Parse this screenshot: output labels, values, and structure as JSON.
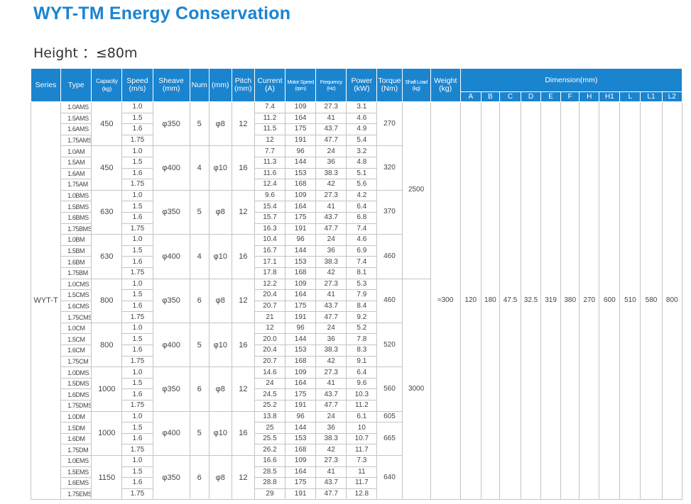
{
  "title": "WYT-TM Energy Conservation",
  "height_label": "Height ：≤80m",
  "headers": {
    "series": "Series",
    "type": "Type",
    "capacity": "Capacity (kg)",
    "speed": "Speed (m/s)",
    "sheave": "Sheave (mm)",
    "num": "Num",
    "mm": "(mm)",
    "pitch": "Pitch (mm)",
    "current": "Current (A)",
    "motor_speed": "Motor Speed (rpm)",
    "frequency": "Frequency (Hz)",
    "power": "Power (kW)",
    "torque": "Torque (Nm)",
    "shaft_load": "Shaft Load (kg)",
    "weight": "Weight (kg)",
    "dimension": "Dimension(mm)",
    "dim_cols": [
      "A",
      "B",
      "C",
      "D",
      "E",
      "F",
      "H",
      "H1",
      "L",
      "L1",
      "L2"
    ]
  },
  "series_name": "WYT-T",
  "shaft_loads": [
    "2500",
    "3000"
  ],
  "weight": "≈300",
  "dimensions": [
    "120",
    "180",
    "47.5",
    "32.5",
    "319",
    "380",
    "270",
    "600",
    "510",
    "580",
    "800"
  ],
  "groups": [
    {
      "capacity": "450",
      "sheave": "φ350",
      "num": "5",
      "rope": "φ8",
      "pitch": "12",
      "torque": [
        "270"
      ],
      "rows": [
        {
          "type": "1.0AMS",
          "speed": "1.0",
          "current": "7.4",
          "motor_speed": "109",
          "frequency": "27.3",
          "power": "3.1"
        },
        {
          "type": "1.5AMS",
          "speed": "1.5",
          "current": "11.2",
          "motor_speed": "164",
          "frequency": "41",
          "power": "4.6"
        },
        {
          "type": "1.6AMS",
          "speed": "1.6",
          "current": "11.5",
          "motor_speed": "175",
          "frequency": "43.7",
          "power": "4.9"
        },
        {
          "type": "1.75AMS",
          "speed": "1.75",
          "current": "12",
          "motor_speed": "191",
          "frequency": "47.7",
          "power": "5.4"
        }
      ]
    },
    {
      "capacity": "450",
      "sheave": "φ400",
      "num": "4",
      "rope": "φ10",
      "pitch": "16",
      "torque": [
        "320"
      ],
      "rows": [
        {
          "type": "1.0AM",
          "speed": "1.0",
          "current": "7.7",
          "motor_speed": "96",
          "frequency": "24",
          "power": "3.2"
        },
        {
          "type": "1.5AM",
          "speed": "1.5",
          "current": "11.3",
          "motor_speed": "144",
          "frequency": "36",
          "power": "4.8"
        },
        {
          "type": "1.6AM",
          "speed": "1.6",
          "current": "11.6",
          "motor_speed": "153",
          "frequency": "38.3",
          "power": "5.1"
        },
        {
          "type": "1.75AM",
          "speed": "1.75",
          "current": "12.4",
          "motor_speed": "168",
          "frequency": "42",
          "power": "5.6"
        }
      ]
    },
    {
      "capacity": "630",
      "sheave": "φ350",
      "num": "5",
      "rope": "φ8",
      "pitch": "12",
      "torque": [
        "370"
      ],
      "rows": [
        {
          "type": "1.0BMS",
          "speed": "1.0",
          "current": "9.6",
          "motor_speed": "109",
          "frequency": "27.3",
          "power": "4.2"
        },
        {
          "type": "1.5BMS",
          "speed": "1.5",
          "current": "15.4",
          "motor_speed": "164",
          "frequency": "41",
          "power": "6.4"
        },
        {
          "type": "1.6BMS",
          "speed": "1.6",
          "current": "15.7",
          "motor_speed": "175",
          "frequency": "43.7",
          "power": "6.8"
        },
        {
          "type": "1.75BMS",
          "speed": "1.75",
          "current": "16.3",
          "motor_speed": "191",
          "frequency": "47.7",
          "power": "7.4"
        }
      ]
    },
    {
      "capacity": "630",
      "sheave": "φ400",
      "num": "4",
      "rope": "φ10",
      "pitch": "16",
      "torque": [
        "460"
      ],
      "rows": [
        {
          "type": "1.0BM",
          "speed": "1.0",
          "current": "10.4",
          "motor_speed": "96",
          "frequency": "24",
          "power": "4.6"
        },
        {
          "type": "1.5BM",
          "speed": "1.5",
          "current": "16.7",
          "motor_speed": "144",
          "frequency": "36",
          "power": "6.9"
        },
        {
          "type": "1.6BM",
          "speed": "1.6",
          "current": "17.1",
          "motor_speed": "153",
          "frequency": "38.3",
          "power": "7.4"
        },
        {
          "type": "1.75BM",
          "speed": "1.75",
          "current": "17.8",
          "motor_speed": "168",
          "frequency": "42",
          "power": "8.1"
        }
      ]
    },
    {
      "capacity": "800",
      "sheave": "φ350",
      "num": "6",
      "rope": "φ8",
      "pitch": "12",
      "torque": [
        "460"
      ],
      "rows": [
        {
          "type": "1.0CMS",
          "speed": "1.0",
          "current": "12.2",
          "motor_speed": "109",
          "frequency": "27.3",
          "power": "5.3"
        },
        {
          "type": "1.5CMS",
          "speed": "1.5",
          "current": "20.4",
          "motor_speed": "164",
          "frequency": "41",
          "power": "7.9"
        },
        {
          "type": "1.6CMS",
          "speed": "1.6",
          "current": "20.7",
          "motor_speed": "175",
          "frequency": "43.7",
          "power": "8.4"
        },
        {
          "type": "1.75CMS",
          "speed": "1.75",
          "current": "21",
          "motor_speed": "191",
          "frequency": "47.7",
          "power": "9.2"
        }
      ]
    },
    {
      "capacity": "800",
      "sheave": "φ400",
      "num": "5",
      "rope": "φ10",
      "pitch": "16",
      "torque": [
        "520"
      ],
      "rows": [
        {
          "type": "1.0CM",
          "speed": "1.0",
          "current": "12",
          "motor_speed": "96",
          "frequency": "24",
          "power": "5.2"
        },
        {
          "type": "1.5CM",
          "speed": "1.5",
          "current": "20.0",
          "motor_speed": "144",
          "frequency": "36",
          "power": "7.8"
        },
        {
          "type": "1.6CM",
          "speed": "1.6",
          "current": "20.4",
          "motor_speed": "153",
          "frequency": "38.3",
          "power": "8.3"
        },
        {
          "type": "1.75CM",
          "speed": "1.75",
          "current": "20.7",
          "motor_speed": "168",
          "frequency": "42",
          "power": "9.1"
        }
      ]
    },
    {
      "capacity": "1000",
      "sheave": "φ350",
      "num": "6",
      "rope": "φ8",
      "pitch": "12",
      "torque": [
        "560"
      ],
      "rows": [
        {
          "type": "1.0DMS",
          "speed": "1.0",
          "current": "14.6",
          "motor_speed": "109",
          "frequency": "27.3",
          "power": "6.4"
        },
        {
          "type": "1.5DMS",
          "speed": "1.5",
          "current": "24",
          "motor_speed": "164",
          "frequency": "41",
          "power": "9.6"
        },
        {
          "type": "1.6DMS",
          "speed": "1.6",
          "current": "24.5",
          "motor_speed": "175",
          "frequency": "43.7",
          "power": "10.3"
        },
        {
          "type": "1.75DMS",
          "speed": "1.75",
          "current": "25.2",
          "motor_speed": "191",
          "frequency": "47.7",
          "power": "11.2"
        }
      ]
    },
    {
      "capacity": "1000",
      "sheave": "φ400",
      "num": "5",
      "rope": "φ10",
      "pitch": "16",
      "torque": [
        "605",
        "665"
      ],
      "rows": [
        {
          "type": "1.0DM",
          "speed": "1.0",
          "current": "13.8",
          "motor_speed": "96",
          "frequency": "24",
          "power": "6.1"
        },
        {
          "type": "1.5DM",
          "speed": "1.5",
          "current": "25",
          "motor_speed": "144",
          "frequency": "36",
          "power": "10"
        },
        {
          "type": "1.6DM",
          "speed": "1.6",
          "current": "25.5",
          "motor_speed": "153",
          "frequency": "38.3",
          "power": "10.7"
        },
        {
          "type": "1.75DM",
          "speed": "1.75",
          "current": "26.2",
          "motor_speed": "168",
          "frequency": "42",
          "power": "11.7"
        }
      ]
    },
    {
      "capacity": "1150",
      "sheave": "φ350",
      "num": "6",
      "rope": "φ8",
      "pitch": "12",
      "torque": [
        "640"
      ],
      "rows": [
        {
          "type": "1.0EMS",
          "speed": "1.0",
          "current": "16.6",
          "motor_speed": "109",
          "frequency": "27.3",
          "power": "7.3"
        },
        {
          "type": "1.5EMS",
          "speed": "1.5",
          "current": "28.5",
          "motor_speed": "164",
          "frequency": "41",
          "power": "11"
        },
        {
          "type": "1.6EMS",
          "speed": "1.6",
          "current": "28.8",
          "motor_speed": "175",
          "frequency": "43.7",
          "power": "11.7"
        },
        {
          "type": "1.75EMS",
          "speed": "1.75",
          "current": "29",
          "motor_speed": "191",
          "frequency": "47.7",
          "power": "12.8"
        }
      ]
    }
  ]
}
